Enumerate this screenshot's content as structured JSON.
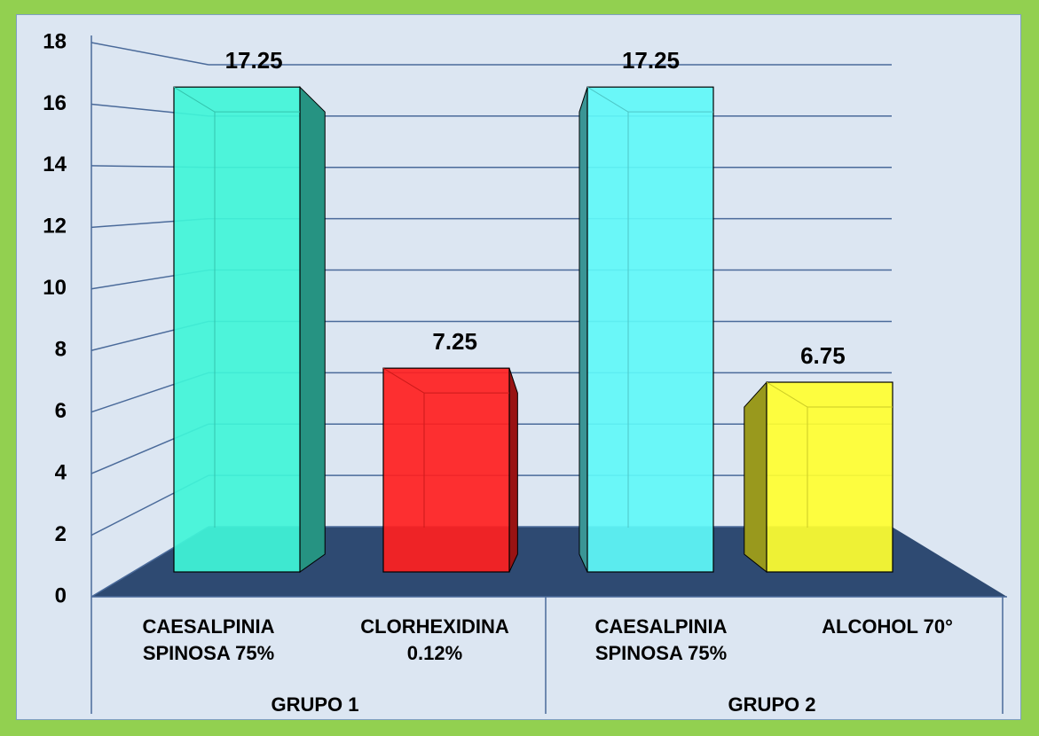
{
  "chart_data": {
    "type": "bar3d",
    "categories": [
      "CAESALPINIA SPINOSA 75%",
      "CLORHEXIDINA 0.12%",
      "CAESALPINIA SPINOSA 75%",
      "ALCOHOL 70°"
    ],
    "groups": [
      "GRUPO 1",
      "GRUPO 2"
    ],
    "values": [
      17.25,
      7.25,
      17.25,
      6.75
    ],
    "colors": [
      "#40F5D8",
      "#FF2020",
      "#60F8F8",
      "#FFFF30"
    ],
    "ylim": [
      0,
      18
    ],
    "yticks": [
      0,
      2,
      4,
      6,
      8,
      10,
      12,
      14,
      16,
      18
    ],
    "grid": true
  }
}
